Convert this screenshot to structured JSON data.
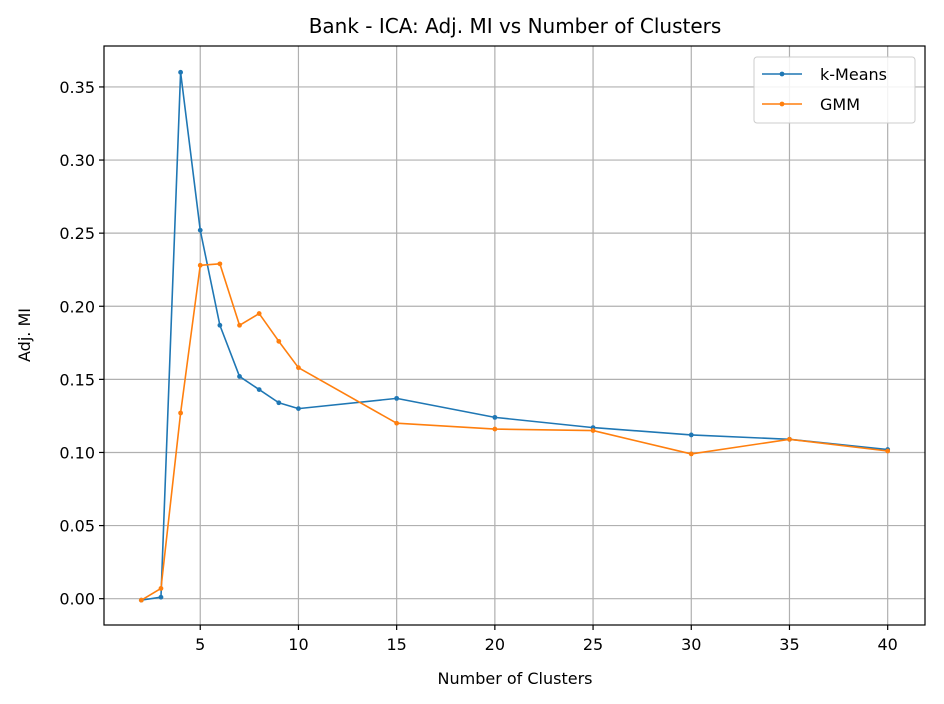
{
  "chart_data": {
    "type": "line",
    "title": "Bank - ICA: Adj. MI vs Number of Clusters",
    "xlabel": "Number of Clusters",
    "ylabel": "Adj. MI",
    "xlim": [
      0.1,
      41.9
    ],
    "ylim": [
      -0.018,
      0.378
    ],
    "xticks": [
      5,
      10,
      15,
      20,
      25,
      30,
      35,
      40
    ],
    "xtick_labels": [
      "5",
      "10",
      "15",
      "20",
      "25",
      "30",
      "35",
      "40"
    ],
    "yticks": [
      0.0,
      0.05,
      0.1,
      0.15,
      0.2,
      0.25,
      0.3,
      0.35
    ],
    "ytick_labels": [
      "0.00",
      "0.05",
      "0.10",
      "0.15",
      "0.20",
      "0.25",
      "0.30",
      "0.35"
    ],
    "grid": true,
    "legend_position": "top-right",
    "series": [
      {
        "name": "k-Means",
        "color": "#1f77b4",
        "x": [
          2,
          3,
          4,
          5,
          6,
          7,
          8,
          9,
          10,
          15,
          20,
          25,
          30,
          35,
          40
        ],
        "y": [
          -0.001,
          0.001,
          0.36,
          0.252,
          0.187,
          0.152,
          0.143,
          0.134,
          0.13,
          0.137,
          0.124,
          0.117,
          0.112,
          0.109,
          0.102
        ]
      },
      {
        "name": "GMM",
        "color": "#ff7f0e",
        "x": [
          2,
          3,
          4,
          5,
          6,
          7,
          8,
          9,
          10,
          15,
          20,
          25,
          30,
          35,
          40
        ],
        "y": [
          -0.001,
          0.007,
          0.127,
          0.228,
          0.229,
          0.187,
          0.195,
          0.176,
          0.158,
          0.12,
          0.116,
          0.115,
          0.099,
          0.109,
          0.101
        ]
      }
    ]
  }
}
